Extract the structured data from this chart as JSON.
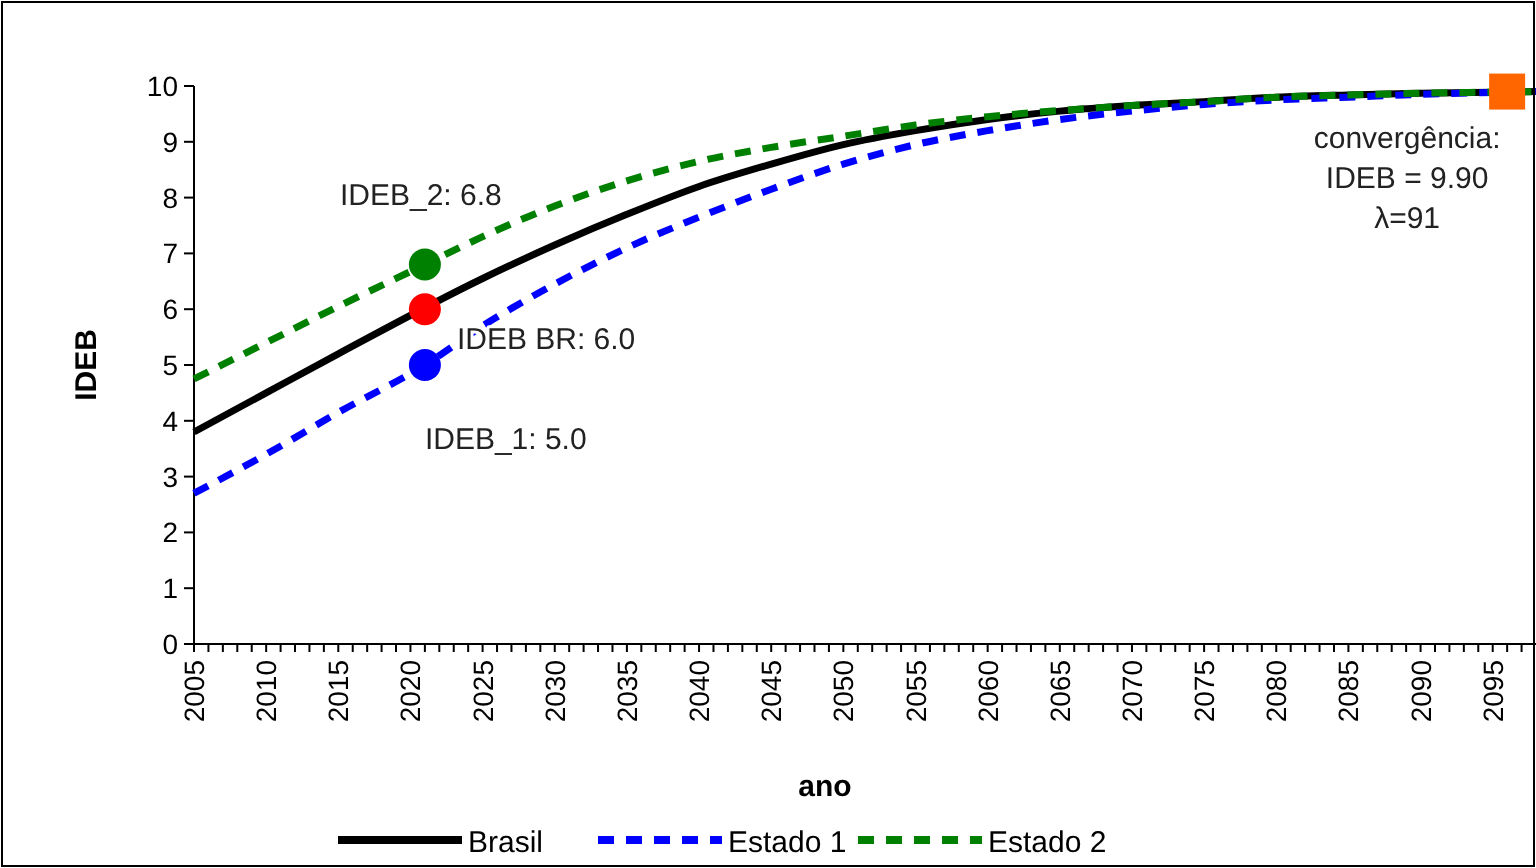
{
  "chart_data": {
    "type": "line",
    "xlabel": "ano",
    "ylabel": "IDEB",
    "xlim": [
      2005,
      2098
    ],
    "ylim": [
      0,
      10
    ],
    "yticks": [
      0,
      1,
      2,
      3,
      4,
      5,
      6,
      7,
      8,
      9,
      10
    ],
    "xticks": [
      2005,
      {
        "value": 2006,
        "label": null
      },
      {
        "value": 2007,
        "label": null
      },
      {
        "value": 2008,
        "label": null
      },
      {
        "value": 2009,
        "label": null
      },
      2010,
      {
        "value": 2011,
        "label": null
      },
      {
        "value": 2012,
        "label": null
      },
      {
        "value": 2013,
        "label": null
      },
      {
        "value": 2014,
        "label": null
      },
      2015,
      {
        "value": 2016,
        "label": null
      },
      {
        "value": 2017,
        "label": null
      },
      {
        "value": 2018,
        "label": null
      },
      {
        "value": 2019,
        "label": null
      },
      2020,
      {
        "value": 2021,
        "label": null
      },
      {
        "value": 2022,
        "label": null
      },
      {
        "value": 2023,
        "label": null
      },
      {
        "value": 2024,
        "label": null
      },
      2025,
      {
        "value": 2026,
        "label": null
      },
      {
        "value": 2027,
        "label": null
      },
      {
        "value": 2028,
        "label": null
      },
      {
        "value": 2029,
        "label": null
      },
      2030,
      {
        "value": 2031,
        "label": null
      },
      {
        "value": 2032,
        "label": null
      },
      {
        "value": 2033,
        "label": null
      },
      {
        "value": 2034,
        "label": null
      },
      2035,
      {
        "value": 2036,
        "label": null
      },
      {
        "value": 2037,
        "label": null
      },
      {
        "value": 2038,
        "label": null
      },
      {
        "value": 2039,
        "label": null
      },
      2040,
      {
        "value": 2041,
        "label": null
      },
      {
        "value": 2042,
        "label": null
      },
      {
        "value": 2043,
        "label": null
      },
      {
        "value": 2044,
        "label": null
      },
      2045,
      {
        "value": 2046,
        "label": null
      },
      {
        "value": 2047,
        "label": null
      },
      {
        "value": 2048,
        "label": null
      },
      {
        "value": 2049,
        "label": null
      },
      2050,
      {
        "value": 2051,
        "label": null
      },
      {
        "value": 2052,
        "label": null
      },
      {
        "value": 2053,
        "label": null
      },
      {
        "value": 2054,
        "label": null
      },
      2055,
      {
        "value": 2056,
        "label": null
      },
      {
        "value": 2057,
        "label": null
      },
      {
        "value": 2058,
        "label": null
      },
      {
        "value": 2059,
        "label": null
      },
      2060,
      {
        "value": 2061,
        "label": null
      },
      {
        "value": 2062,
        "label": null
      },
      {
        "value": 2063,
        "label": null
      },
      {
        "value": 2064,
        "label": null
      },
      2065,
      {
        "value": 2066,
        "label": null
      },
      {
        "value": 2067,
        "label": null
      },
      {
        "value": 2068,
        "label": null
      },
      {
        "value": 2069,
        "label": null
      },
      2070,
      {
        "value": 2071,
        "label": null
      },
      {
        "value": 2072,
        "label": null
      },
      {
        "value": 2073,
        "label": null
      },
      {
        "value": 2074,
        "label": null
      },
      2075,
      {
        "value": 2076,
        "label": null
      },
      {
        "value": 2077,
        "label": null
      },
      {
        "value": 2078,
        "label": null
      },
      {
        "value": 2079,
        "label": null
      },
      2080,
      {
        "value": 2081,
        "label": null
      },
      {
        "value": 2082,
        "label": null
      },
      {
        "value": 2083,
        "label": null
      },
      {
        "value": 2084,
        "label": null
      },
      2085,
      {
        "value": 2086,
        "label": null
      },
      {
        "value": 2087,
        "label": null
      },
      {
        "value": 2088,
        "label": null
      },
      {
        "value": 2089,
        "label": null
      },
      2090,
      {
        "value": 2091,
        "label": null
      },
      {
        "value": 2092,
        "label": null
      },
      {
        "value": 2093,
        "label": null
      },
      {
        "value": 2094,
        "label": null
      },
      2095,
      {
        "value": 2096,
        "label": null
      },
      {
        "value": 2097,
        "label": null
      }
    ],
    "grid": false,
    "legend": "bottom",
    "marker": "none",
    "series": [
      {
        "name": "Brasil",
        "color": "#000000",
        "line_style": "solid",
        "x": [
          2005,
          2010,
          2015,
          2025,
          2030,
          2035,
          2040,
          2045,
          2050,
          2055,
          2060,
          2065,
          2070,
          2075,
          2080,
          2085,
          2090,
          2098
        ],
        "values": [
          3.8,
          4.5,
          5.2,
          6.55,
          7.15,
          7.7,
          8.2,
          8.6,
          8.95,
          9.2,
          9.4,
          9.55,
          9.65,
          9.72,
          9.8,
          9.84,
          9.87,
          9.9
        ]
      },
      {
        "name": "Estado 1",
        "color": "#0000ff",
        "line_style": "dashed",
        "x": [
          2005,
          2010,
          2015,
          2021,
          2025,
          2030,
          2035,
          2040,
          2045,
          2050,
          2055,
          2060,
          2065,
          2070,
          2075,
          2080,
          2085,
          2090,
          2098
        ],
        "values": [
          2.7,
          3.4,
          4.15,
          5.0,
          5.7,
          6.45,
          7.1,
          7.65,
          8.15,
          8.6,
          8.95,
          9.2,
          9.4,
          9.55,
          9.67,
          9.75,
          9.8,
          9.85,
          9.9
        ]
      },
      {
        "name": "Estado 2",
        "color": "#008000",
        "line_style": "dashed",
        "x": [
          2005,
          2010,
          2015,
          2021,
          2025,
          2030,
          2035,
          2040,
          2045,
          2050,
          2055,
          2060,
          2065,
          2070,
          2075,
          2080,
          2085,
          2090,
          2098
        ],
        "values": [
          4.75,
          5.4,
          6.05,
          6.8,
          7.3,
          7.85,
          8.3,
          8.65,
          8.9,
          9.1,
          9.3,
          9.45,
          9.56,
          9.65,
          9.72,
          9.8,
          9.84,
          9.87,
          9.9
        ]
      },
      {
        "type": "scatter",
        "marker": "circle",
        "color": "#008000",
        "x": [
          2021
        ],
        "values": [
          6.8
        ]
      },
      {
        "type": "scatter",
        "marker": "circle",
        "color": "#ff0000",
        "x": [
          2021
        ],
        "values": [
          6.0
        ]
      },
      {
        "type": "scatter",
        "marker": "circle",
        "color": "#0000ff",
        "x": [
          2021
        ],
        "values": [
          5.0
        ]
      },
      {
        "type": "scatter",
        "marker": "square",
        "color": "#ff6600",
        "x": [
          2096
        ],
        "values": [
          9.9
        ]
      }
    ],
    "annotations": [
      "IDEB_2: 6.8",
      "IDEB BR: 6.0",
      "IDEB_1: 5.0",
      "convergência:\nIDEB = 9.90\nλ=91"
    ]
  }
}
